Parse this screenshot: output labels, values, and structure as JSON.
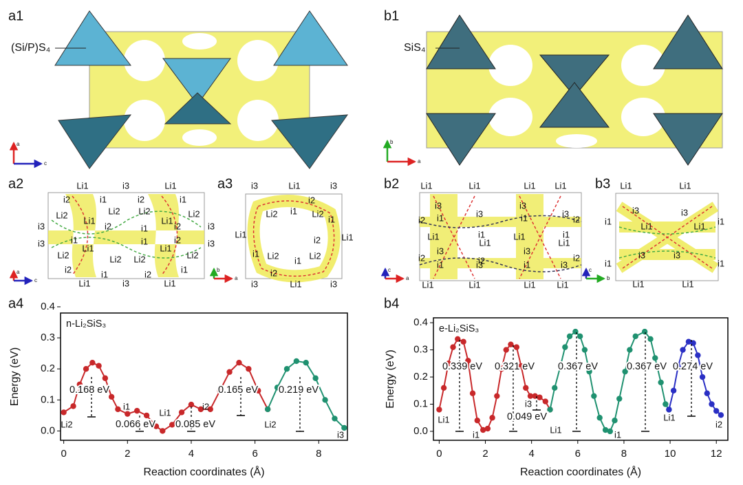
{
  "panels": {
    "a1": {
      "label": "a1",
      "polyhedron": "(Si/P)S₄",
      "axes": [
        "a",
        "c"
      ]
    },
    "b1": {
      "label": "b1",
      "polyhedron": "SiS₄",
      "axes": [
        "b",
        "a"
      ]
    },
    "a2": {
      "label": "a2",
      "axes": [
        "a",
        "c"
      ],
      "sites": [
        "Li1",
        "i3",
        "Li1",
        "i2",
        "i1",
        "i2",
        "i1",
        "Li2",
        "Li2",
        "Li2",
        "Li2",
        "Li1",
        "Li1",
        "i3",
        "i2",
        "i1",
        "i2",
        "i3",
        "i3",
        "i1",
        "i1",
        "i2",
        "i3",
        "Li2",
        "Li1",
        "Li2",
        "Li2",
        "Li1",
        "Li2",
        "i2",
        "i1",
        "i2",
        "i1",
        "Li1",
        "i3",
        "Li1"
      ]
    },
    "a3": {
      "label": "a3",
      "axes": [
        "b",
        "a"
      ],
      "sites": [
        "i3",
        "Li1",
        "i3",
        "i2",
        "Li2",
        "i1",
        "Li2",
        "i1",
        "Li1",
        "i2",
        "Li1",
        "i1",
        "Li2",
        "i1",
        "Li2",
        "i2",
        "i3",
        "Li1",
        "i3"
      ]
    },
    "b2": {
      "label": "b2",
      "axes": [
        "c",
        "a"
      ],
      "sites": [
        "Li1",
        "Li1",
        "Li1",
        "Li1",
        "i3",
        "i3",
        "i1",
        "i3",
        "i1",
        "i3",
        "i2",
        "i2",
        "Li1",
        "i1",
        "Li1",
        "i1",
        "i3",
        "Li1",
        "i3",
        "Li1",
        "i2",
        "i2",
        "i2",
        "i1",
        "i3",
        "i1",
        "i3",
        "Li1",
        "Li1",
        "Li1",
        "Li1"
      ]
    },
    "b3": {
      "label": "b3",
      "axes": [
        "c",
        "b"
      ],
      "sites": [
        "Li1",
        "Li1",
        "i3",
        "i1",
        "Li1",
        "i3",
        "Li1",
        "i1",
        "i3",
        "i3",
        "i1",
        "i1",
        "Li1",
        "Li1"
      ]
    }
  },
  "chart_data": [
    {
      "type": "line",
      "panel": "a4",
      "title": "n-Li₂SiS₃",
      "xlabel": "Reaction coordinates (Å)",
      "ylabel": "Energy (eV)",
      "xlim": [
        -0.1,
        8.9
      ],
      "ylim": [
        -0.03,
        0.38
      ],
      "xticks": [
        0,
        2,
        4,
        6,
        8
      ],
      "yticks": [
        {
          "value": 0,
          "label": "0.0"
        },
        0.1,
        0.2,
        0.3,
        0.4
      ],
      "series": [
        {
          "color": "#c8282a",
          "x": [
            0,
            0.3,
            0.5,
            0.7,
            0.9,
            1.1,
            1.3,
            1.5,
            1.7,
            2.0,
            2.3,
            2.6,
            2.9,
            3.1,
            3.4,
            3.7,
            4.0,
            4.3,
            4.6,
            4.9,
            5.2,
            5.5,
            5.8,
            6.1,
            6.4
          ],
          "values": [
            0.06,
            0.08,
            0.15,
            0.2,
            0.22,
            0.21,
            0.17,
            0.11,
            0.07,
            0.055,
            0.065,
            0.05,
            0.015,
            0.0,
            0.02,
            0.06,
            0.085,
            0.07,
            0.07,
            0.13,
            0.19,
            0.22,
            0.2,
            0.13,
            0.07
          ]
        },
        {
          "color": "#1f9170",
          "x": [
            6.4,
            6.7,
            7.0,
            7.3,
            7.6,
            7.9,
            8.2,
            8.5,
            8.8
          ],
          "values": [
            0.07,
            0.14,
            0.2,
            0.225,
            0.22,
            0.17,
            0.1,
            0.04,
            0.01
          ]
        }
      ],
      "barriers": [
        "0.168 eV",
        "0.066 eV",
        "0.085 eV",
        "0.165 eV",
        "0.219 eV"
      ],
      "sites": [
        "Li2",
        "i1",
        "Li1",
        "i2",
        "Li2",
        "i3"
      ]
    },
    {
      "type": "line",
      "panel": "b4",
      "title": "e-Li₂SiS₃",
      "xlabel": "Reaction coordinates (Å)",
      "ylabel": "Energy (eV)",
      "xlim": [
        -0.25,
        12.5
      ],
      "ylim": [
        -0.033,
        0.418
      ],
      "xticks": [
        0,
        2,
        4,
        6,
        8,
        10,
        12
      ],
      "yticks": [
        {
          "value": 0,
          "label": "0.0"
        },
        0.1,
        0.2,
        0.3,
        0.4
      ],
      "series": [
        {
          "color": "#c8282a",
          "x": [
            0,
            0.2,
            0.4,
            0.6,
            0.8,
            1.05,
            1.25,
            1.45,
            1.65,
            1.9,
            2.1,
            2.3,
            2.5,
            2.7,
            2.9,
            3.1,
            3.35,
            3.55,
            3.75,
            3.95,
            4.15,
            4.35,
            4.6,
            4.8
          ],
          "values": [
            0.08,
            0.16,
            0.25,
            0.31,
            0.34,
            0.33,
            0.26,
            0.14,
            0.04,
            0.005,
            0.01,
            0.05,
            0.13,
            0.23,
            0.3,
            0.32,
            0.31,
            0.24,
            0.16,
            0.13,
            0.13,
            0.125,
            0.11,
            0.08
          ]
        },
        {
          "color": "#1f9170",
          "x": [
            4.8,
            5.0,
            5.25,
            5.45,
            5.65,
            5.9,
            6.1,
            6.3,
            6.5,
            6.7,
            6.95,
            7.2,
            7.4,
            7.6,
            7.8,
            8.05,
            8.25,
            8.5,
            8.9,
            9.15,
            9.35,
            9.6,
            9.8,
            9.95
          ],
          "values": [
            0.08,
            0.16,
            0.24,
            0.31,
            0.35,
            0.367,
            0.35,
            0.3,
            0.22,
            0.13,
            0.05,
            0.005,
            0.0,
            0.04,
            0.12,
            0.22,
            0.3,
            0.35,
            0.367,
            0.34,
            0.27,
            0.18,
            0.1,
            0.08
          ]
        },
        {
          "color": "#2a2fc4",
          "x": [
            9.95,
            10.15,
            10.35,
            10.55,
            10.8,
            11.0,
            11.2,
            11.4,
            11.6,
            11.8,
            12.0,
            12.2
          ],
          "values": [
            0.08,
            0.15,
            0.24,
            0.3,
            0.33,
            0.325,
            0.28,
            0.2,
            0.14,
            0.1,
            0.075,
            0.06
          ]
        }
      ],
      "barriers": [
        "0.339 eV",
        "0.321 eV",
        "0.049 eV",
        "0.367 eV",
        "0.367 eV",
        "0.274 eV"
      ],
      "sites": [
        "Li1",
        "i1",
        "i3",
        "Li1",
        "i1",
        "Li1",
        "i2"
      ]
    }
  ]
}
